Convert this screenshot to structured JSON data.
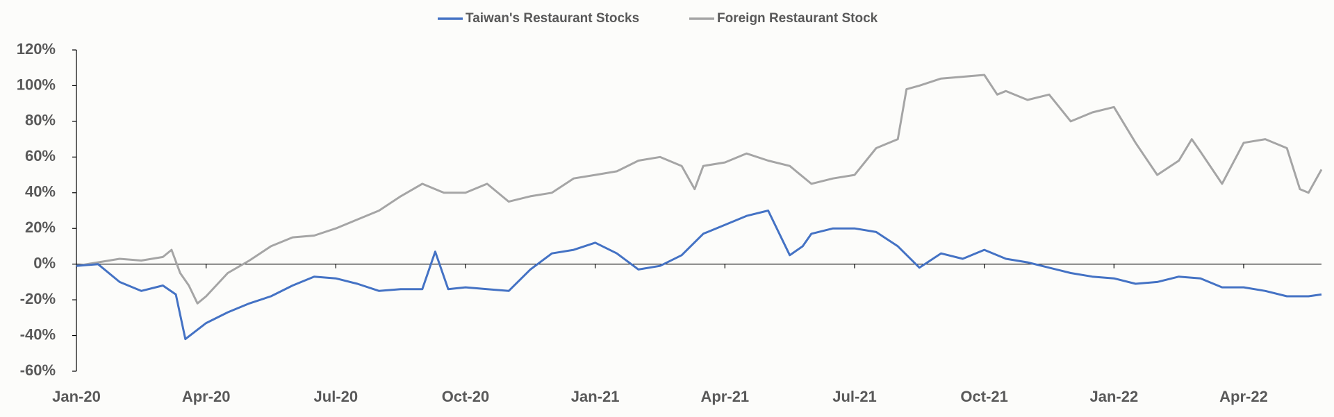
{
  "chart_data": {
    "type": "line",
    "xticks": [
      {
        "value": 0,
        "label": "Jan-20"
      },
      {
        "value": 3,
        "label": "Apr-20"
      },
      {
        "value": 6,
        "label": "Jul-20"
      },
      {
        "value": 9,
        "label": "Oct-20"
      },
      {
        "value": 12,
        "label": "Jan-21"
      },
      {
        "value": 15,
        "label": "Apr-21"
      },
      {
        "value": 18,
        "label": "Jul-21"
      },
      {
        "value": 21,
        "label": "Oct-21"
      },
      {
        "value": 24,
        "label": "Jan-22"
      },
      {
        "value": 27,
        "label": "Apr-22"
      }
    ],
    "xlim": [
      0,
      28.8
    ],
    "ylim": [
      -60,
      120
    ],
    "yticks": [
      {
        "value": -60,
        "label": "-60%"
      },
      {
        "value": -40,
        "label": "-40%"
      },
      {
        "value": -20,
        "label": "-20%"
      },
      {
        "value": 0,
        "label": "0%"
      },
      {
        "value": 20,
        "label": "20%"
      },
      {
        "value": 40,
        "label": "40%"
      },
      {
        "value": 60,
        "label": "60%"
      },
      {
        "value": 80,
        "label": "80%"
      },
      {
        "value": 100,
        "label": "100%"
      },
      {
        "value": 120,
        "label": "120%"
      }
    ],
    "legend": "top",
    "series": [
      {
        "name": "Taiwan's Restaurant Stocks",
        "color": "#4472c4",
        "x": [
          0,
          0.5,
          1,
          1.5,
          2,
          2.3,
          2.52,
          3,
          3.5,
          4,
          4.5,
          5,
          5.5,
          6,
          6.5,
          7,
          7.5,
          8,
          8.3,
          8.6,
          9,
          9.5,
          10,
          10.5,
          11,
          11.5,
          12,
          12.5,
          13,
          13.5,
          14,
          14.5,
          15,
          15.5,
          16,
          16.5,
          16.8,
          17,
          17.5,
          18,
          18.5,
          19,
          19.5,
          20,
          20.5,
          21,
          21.5,
          22,
          22.5,
          23,
          23.5,
          24,
          24.5,
          25,
          25.5,
          26,
          26.5,
          27,
          27.5,
          28,
          28.5,
          28.8
        ],
        "values": [
          -1,
          0,
          -10,
          -15,
          -12,
          -17,
          -42,
          -33,
          -27,
          -22,
          -18,
          -12,
          -7,
          -8,
          -11,
          -15,
          -14,
          -14,
          7,
          -14,
          -13,
          -14,
          -15,
          -3,
          6,
          8,
          12,
          6,
          -3,
          -1,
          5,
          17,
          22,
          27,
          30,
          5,
          10,
          17,
          20,
          20,
          18,
          10,
          -2,
          6,
          3,
          8,
          3,
          1,
          -2,
          -5,
          -7,
          -8,
          -11,
          -10,
          -7,
          -8,
          -13,
          -13,
          -15,
          -18,
          -18,
          -17
        ]
      },
      {
        "name": "Foreign Restaurant Stock",
        "color": "#a5a5a5",
        "x": [
          0,
          0.5,
          1,
          1.5,
          2,
          2.2,
          2.4,
          2.6,
          2.8,
          3,
          3.5,
          4,
          4.5,
          5,
          5.5,
          6,
          6.5,
          7,
          7.5,
          8,
          8.5,
          9,
          9.5,
          10,
          10.5,
          11,
          11.5,
          12,
          12.5,
          13,
          13.5,
          14,
          14.3,
          14.5,
          15,
          15.5,
          16,
          16.5,
          17,
          17.5,
          18,
          18.5,
          19,
          19.2,
          19.5,
          20,
          20.5,
          21,
          21.3,
          21.5,
          22,
          22.5,
          23,
          23.5,
          24,
          24.5,
          25,
          25.5,
          25.8,
          26,
          26.5,
          27,
          27.5,
          28,
          28.3,
          28.5,
          28.8
        ],
        "values": [
          -1,
          1,
          3,
          2,
          4,
          8,
          -5,
          -12,
          -22,
          -18,
          -5,
          2,
          10,
          15,
          16,
          20,
          25,
          30,
          38,
          45,
          40,
          40,
          45,
          35,
          38,
          40,
          48,
          50,
          52,
          58,
          60,
          55,
          42,
          55,
          57,
          62,
          58,
          55,
          45,
          48,
          50,
          65,
          70,
          98,
          100,
          104,
          105,
          106,
          95,
          97,
          92,
          95,
          80,
          85,
          88,
          68,
          50,
          58,
          70,
          63,
          45,
          68,
          70,
          65,
          42,
          40,
          53
        ]
      }
    ]
  }
}
